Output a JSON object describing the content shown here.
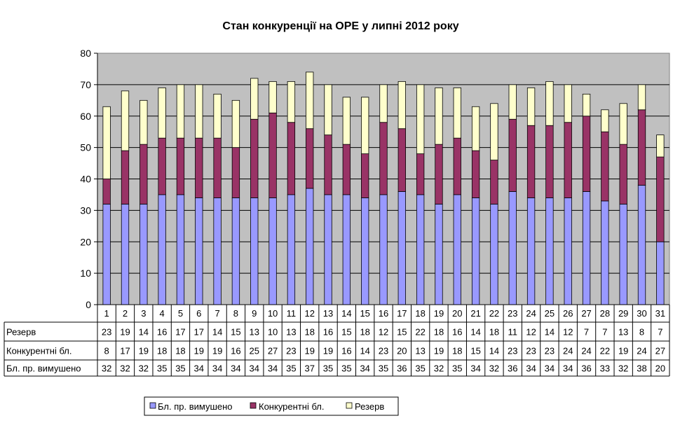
{
  "chart_data": {
    "type": "bar",
    "stacked": true,
    "title": "Стан конкуренції на ОРЕ  у липні 2012 року",
    "xlabel": "",
    "ylabel": "",
    "ylim": [
      0,
      80
    ],
    "yticks": [
      0,
      10,
      20,
      30,
      40,
      50,
      60,
      70,
      80
    ],
    "grid": true,
    "legend_position": "bottom",
    "categories": [
      "1",
      "2",
      "3",
      "4",
      "5",
      "6",
      "7",
      "8",
      "9",
      "10",
      "11",
      "12",
      "13",
      "14",
      "15",
      "16",
      "17",
      "18",
      "19",
      "20",
      "21",
      "22",
      "23",
      "24",
      "25",
      "26",
      "27",
      "28",
      "29",
      "30",
      "31"
    ],
    "series": [
      {
        "name": "Бл. пр. вимушено",
        "color": "#9999ff",
        "values": [
          32,
          32,
          32,
          35,
          35,
          34,
          34,
          34,
          34,
          34,
          35,
          37,
          35,
          35,
          34,
          35,
          36,
          35,
          32,
          35,
          34,
          32,
          36,
          34,
          34,
          34,
          36,
          33,
          32,
          38,
          20
        ]
      },
      {
        "name": "Конкурентні бл.",
        "color": "#993366",
        "values": [
          8,
          17,
          19,
          18,
          18,
          19,
          19,
          16,
          25,
          27,
          23,
          19,
          19,
          16,
          14,
          23,
          20,
          13,
          19,
          18,
          15,
          14,
          23,
          23,
          23,
          24,
          24,
          22,
          19,
          24,
          27
        ]
      },
      {
        "name": "Резерв",
        "color": "#ffffcc",
        "values": [
          23,
          19,
          14,
          16,
          17,
          17,
          14,
          15,
          13,
          10,
          13,
          18,
          16,
          15,
          18,
          12,
          15,
          22,
          18,
          16,
          14,
          18,
          11,
          12,
          14,
          12,
          7,
          7,
          13,
          8,
          7
        ]
      }
    ],
    "table_rows": [
      "Резерв",
      "Конкурентні бл.",
      "Бл. пр. вимушено"
    ]
  }
}
